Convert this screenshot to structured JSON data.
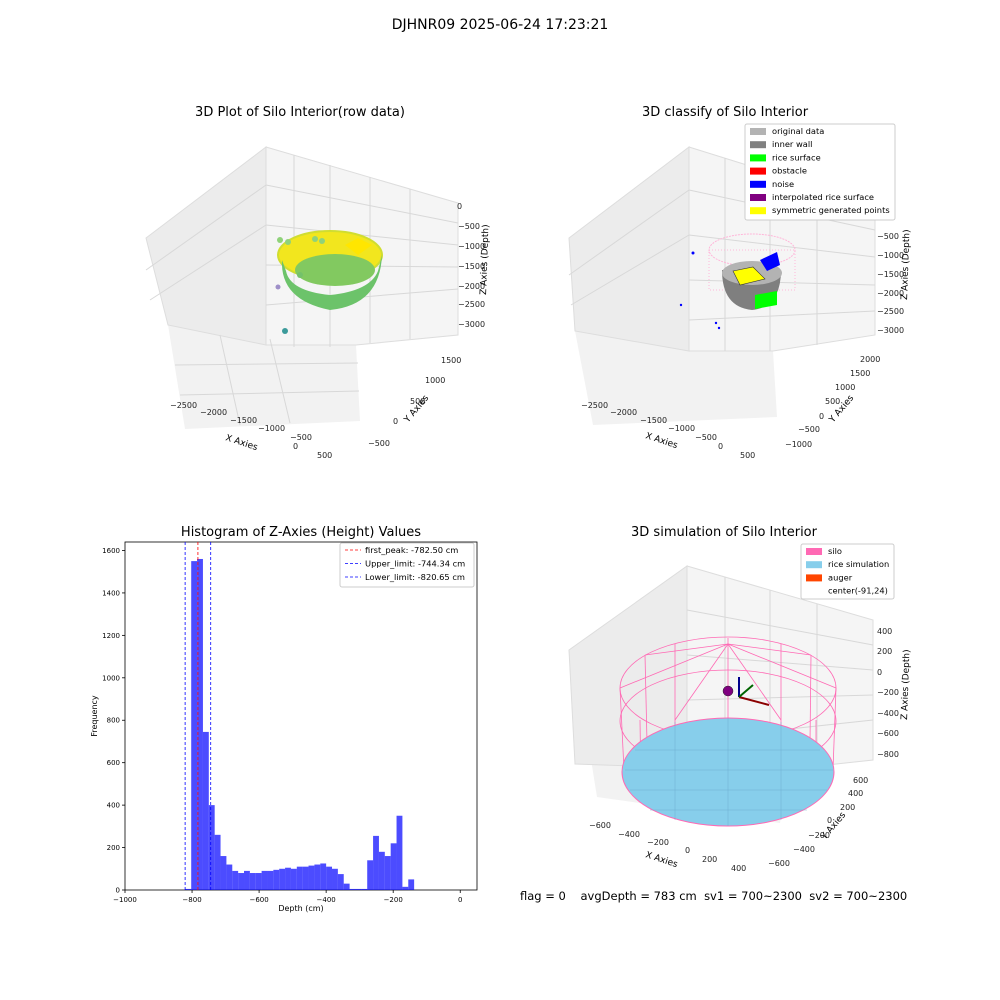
{
  "suptitle": "DJHNR09 2025-06-24 17:23:21",
  "footer": {
    "flag": "flag = 0",
    "avg_depth": "avgDepth = 783 cm",
    "sv1": "sv1 = 700~2300",
    "sv2": "sv2 = 700~2300"
  },
  "chart_data": [
    {
      "type": "scatter",
      "title": "3D Plot of Silo Interior(row data)",
      "xlabel": "X Axies",
      "ylabel": "Y Axies",
      "zlabel": "Z Axies (Depth)",
      "x_ticks": [
        "−2500",
        "−2000",
        "−1500",
        "−1000",
        "−500",
        "0",
        "500"
      ],
      "y_ticks": [
        "−500",
        "0",
        "500",
        "1000",
        "1500"
      ],
      "z_ticks": [
        "0",
        "−500",
        "−1000",
        "−1500",
        "−2000",
        "−2500",
        "−3000"
      ],
      "colormap": [
        "#3b9a9a",
        "#74c26a",
        "#b5d93a",
        "#f2e61e"
      ]
    },
    {
      "type": "scatter",
      "title": "3D classify of Silo Interior",
      "xlabel": "X Axies",
      "ylabel": "Y Axies",
      "zlabel": "Z Axies (Depth)",
      "x_ticks": [
        "−2500",
        "−2000",
        "−1500",
        "−1000",
        "−500",
        "0",
        "500"
      ],
      "y_ticks": [
        "−1000",
        "−500",
        "0",
        "500",
        "1000",
        "1500",
        "2000"
      ],
      "z_ticks": [
        "−500",
        "−1000",
        "−1500",
        "−2000",
        "−2500",
        "−3000"
      ],
      "legend": [
        {
          "label": "original data",
          "color": "#b3b3b3"
        },
        {
          "label": "inner wall",
          "color": "#808080"
        },
        {
          "label": "rice surface",
          "color": "#00ff00"
        },
        {
          "label": "obstacle",
          "color": "#ff0000"
        },
        {
          "label": "noise",
          "color": "#0000ff"
        },
        {
          "label": "interpolated rice surface",
          "color": "#800080"
        },
        {
          "label": "symmetric generated points",
          "color": "#ffff00"
        }
      ],
      "legend_position": "top-right"
    },
    {
      "type": "bar",
      "title": "Histogram of Z-Axies (Height) Values",
      "xlabel": "Depth (cm)",
      "ylabel": "Frequency",
      "xlim": [
        -1000,
        50
      ],
      "ylim": [
        0,
        1640
      ],
      "x_ticks": [
        -1000,
        -800,
        -600,
        -400,
        -200,
        0
      ],
      "y_ticks": [
        0,
        200,
        400,
        600,
        800,
        1000,
        1200,
        1400,
        1600
      ],
      "tick_labels_x": [
        "−1000",
        "−800",
        "−600",
        "−400",
        "−200",
        "0"
      ],
      "tick_labels_y": [
        "0",
        "200",
        "400",
        "600",
        "800",
        "1000",
        "1200",
        "1400",
        "1600"
      ],
      "bin_start": -820,
      "bin_width": 17.5,
      "bar_color": "#0000ff",
      "values": [
        5,
        1550,
        1560,
        745,
        400,
        260,
        160,
        120,
        90,
        80,
        90,
        80,
        80,
        90,
        90,
        95,
        100,
        105,
        100,
        110,
        110,
        115,
        120,
        125,
        110,
        100,
        75,
        30,
        5,
        5,
        5,
        140,
        255,
        180,
        160,
        220,
        350,
        15,
        50
      ],
      "vlines": [
        {
          "label": "first_peak: -782.50 cm",
          "x": -782.5,
          "color": "#ff0000"
        },
        {
          "label": "Upper_limit: -744.34 cm",
          "x": -744.34,
          "color": "#0000ff"
        },
        {
          "label": "Lower_limit: -820.65 cm",
          "x": -820.65,
          "color": "#0000ff"
        }
      ],
      "legend_position": "top-right"
    },
    {
      "type": "scatter",
      "title": "3D simulation of Silo Interior",
      "xlabel": "X Axies",
      "ylabel": "Y Axies",
      "zlabel": "Z Axies (Depth)",
      "x_ticks": [
        "−600",
        "−400",
        "−200",
        "0",
        "200",
        "400"
      ],
      "y_ticks": [
        "−600",
        "−400",
        "−200",
        "0",
        "200",
        "400",
        "600"
      ],
      "z_ticks": [
        "400",
        "200",
        "0",
        "−200",
        "−400",
        "−600",
        "−800"
      ],
      "legend": [
        {
          "label": "silo",
          "color": "#ff69b4"
        },
        {
          "label": "rice simulation",
          "color": "#87ceeb"
        },
        {
          "label": "auger",
          "color": "#ff4500"
        },
        {
          "label": "center(-91,24)",
          "color": ""
        }
      ],
      "legend_position": "top-right"
    }
  ]
}
